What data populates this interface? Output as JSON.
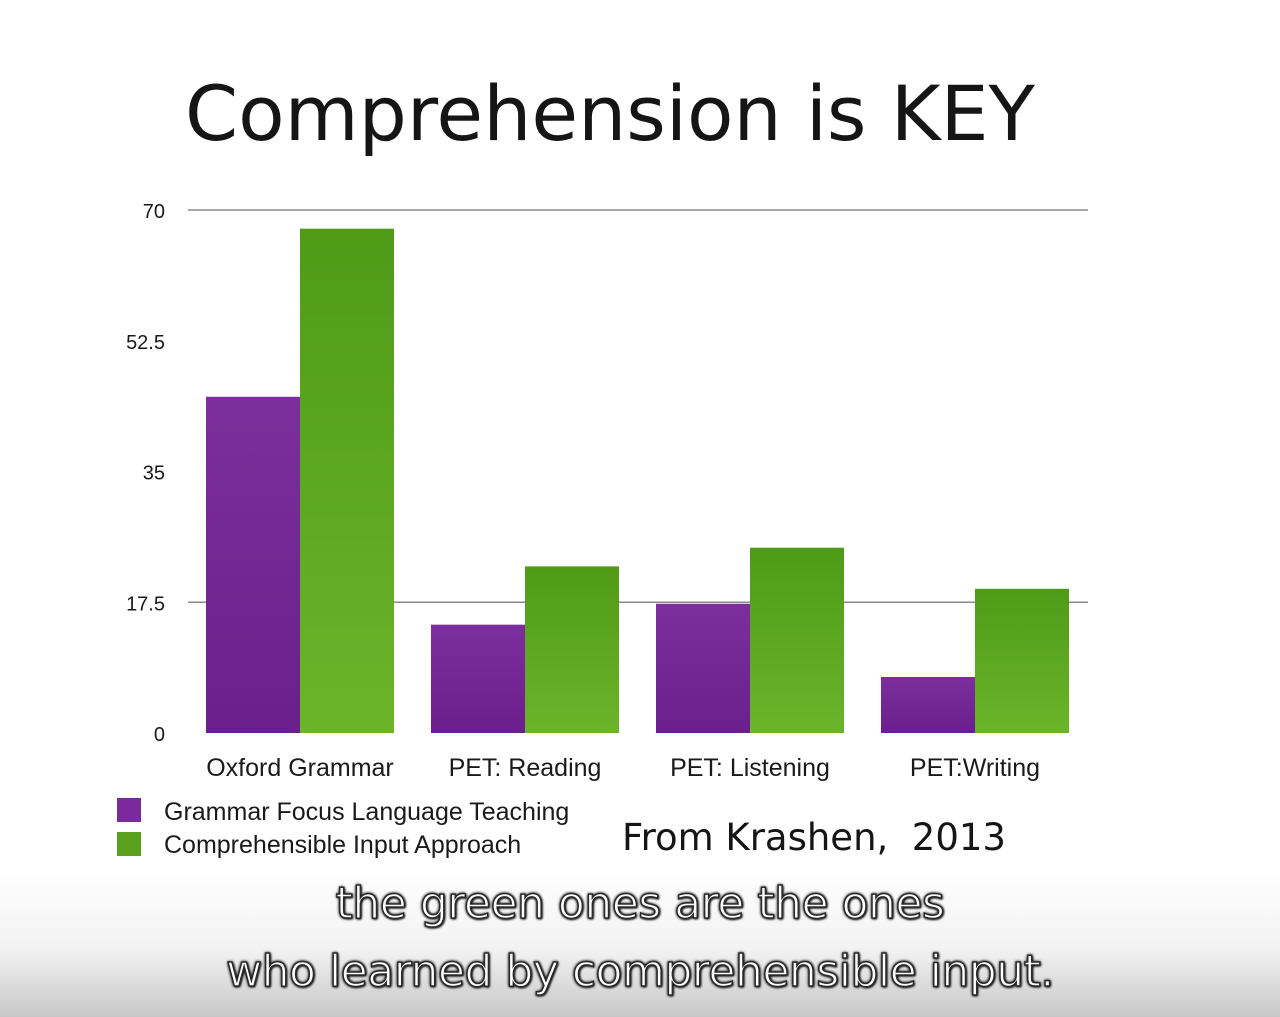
{
  "chart_data": {
    "type": "bar",
    "title": "Comprehension is KEY",
    "categories": [
      "Oxford Grammar",
      "PET: Reading",
      "PET: Listening",
      "PET:Writing"
    ],
    "series": [
      {
        "name": "Grammar Focus Language Teaching",
        "values": [
          45,
          14.5,
          17.3,
          7.5
        ],
        "color": "#7a2a9a"
      },
      {
        "name": "Comprehensible Input Approach",
        "values": [
          67.5,
          22.3,
          24.8,
          19.3
        ],
        "color": "#5aa21e"
      }
    ],
    "yticks": [
      "0",
      "17.5",
      "35",
      "52.5",
      "70"
    ],
    "ylim": [
      0,
      70
    ],
    "gridlines": [
      17.5,
      70
    ],
    "legend_position": "bottom-left",
    "annotation": "From Krashen,  2013"
  },
  "captions": {
    "line1": "the green ones are the ones",
    "line2": "who learned by comprehensible input."
  }
}
